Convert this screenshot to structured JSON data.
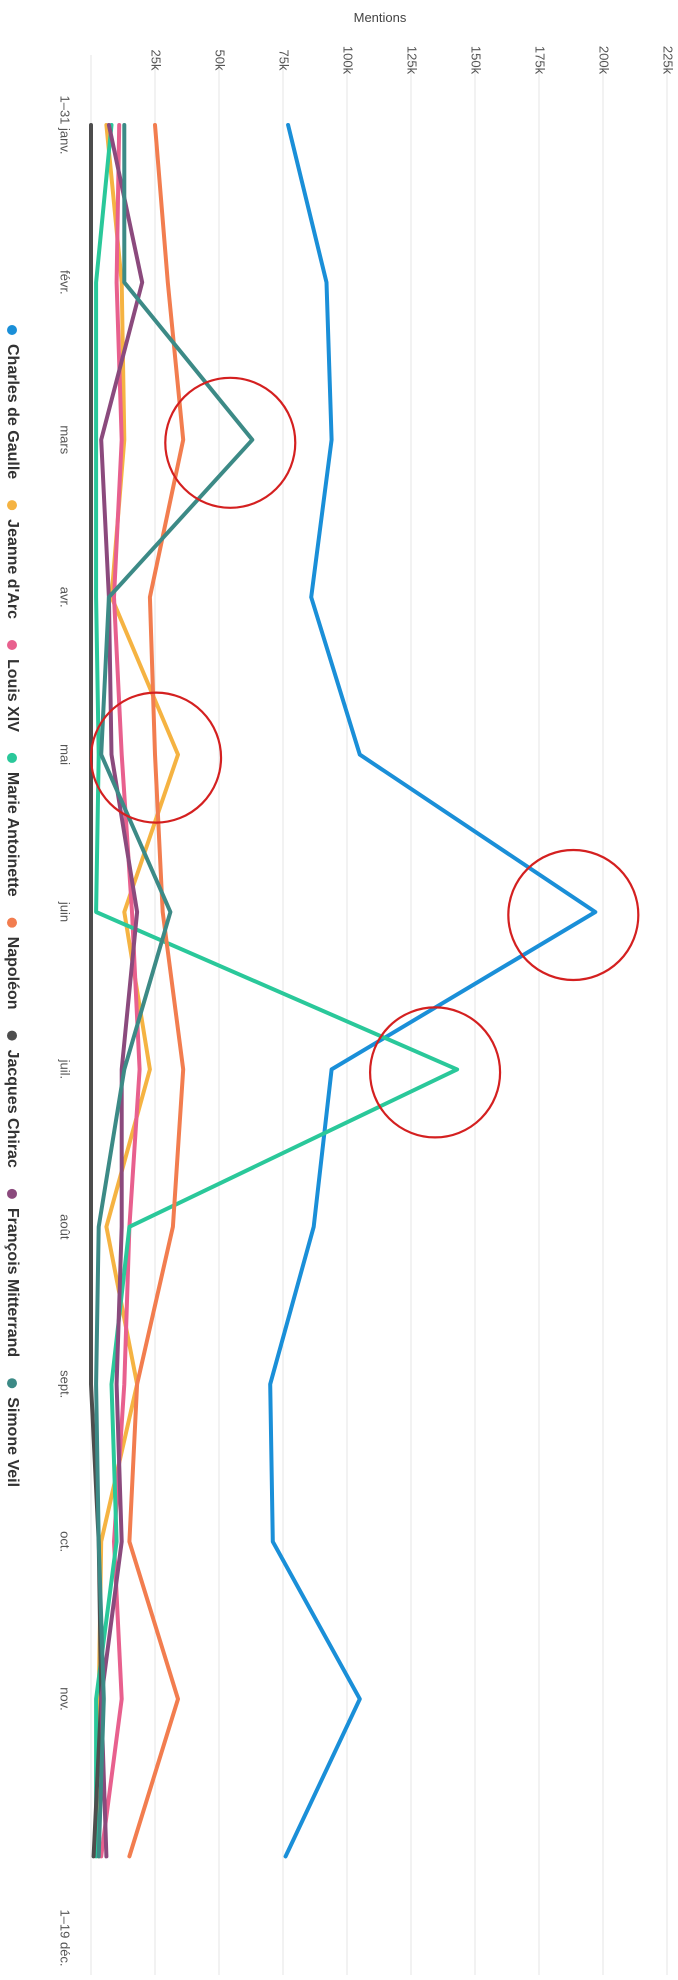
{
  "chart_data": {
    "type": "line",
    "ylabel": "Mentions",
    "xlabel": "",
    "categories": [
      "1–31 janv.",
      "févr.",
      "mars",
      "avr.",
      "mai",
      "juin",
      "juil.",
      "août",
      "sept.",
      "oct.",
      "nov.",
      "1–19 déc."
    ],
    "y_ticks": [
      "25k",
      "50k",
      "75k",
      "100k",
      "125k",
      "150k",
      "175k",
      "200k",
      "225k"
    ],
    "y_tick_values": [
      25000,
      50000,
      75000,
      100000,
      125000,
      150000,
      175000,
      200000,
      225000
    ],
    "ylim": [
      0,
      230000
    ],
    "grid": true,
    "legend_position": "left",
    "orientation": "rotated-90-clockwise",
    "series": [
      {
        "name": "Charles de Gaulle",
        "color": "#1a8fd8",
        "values": [
          77000,
          92000,
          94000,
          86000,
          105000,
          197000,
          94000,
          87000,
          70000,
          71000,
          105000,
          76000
        ]
      },
      {
        "name": "Jeanne d'Arc",
        "color": "#f5b342",
        "values": [
          6000,
          12000,
          13000,
          8000,
          34000,
          13000,
          23000,
          6000,
          18000,
          4000,
          3000,
          3000
        ]
      },
      {
        "name": "Louis XIV",
        "color": "#e8608e",
        "values": [
          11000,
          10000,
          12000,
          9000,
          12000,
          16000,
          19000,
          15000,
          13000,
          9000,
          12000,
          4000
        ]
      },
      {
        "name": "Marie Antoinette",
        "color": "#2ac89a",
        "values": [
          8000,
          2000,
          2000,
          2000,
          3000,
          2000,
          143000,
          15000,
          8000,
          10000,
          2000,
          2000
        ]
      },
      {
        "name": "Napoléon",
        "color": "#f27d4f",
        "values": [
          25000,
          30000,
          36000,
          23000,
          25000,
          28000,
          36000,
          32000,
          18000,
          15000,
          34000,
          15000
        ]
      },
      {
        "name": "Jacques Chirac",
        "color": "#4d4d4d",
        "values": [
          0,
          0,
          0,
          0,
          0,
          0,
          0,
          0,
          0,
          3000,
          4000,
          1000
        ]
      },
      {
        "name": "François Mitterrand",
        "color": "#8b4a7d",
        "values": [
          7000,
          20000,
          4000,
          7000,
          8000,
          18000,
          12000,
          12000,
          10000,
          12000,
          4000,
          6000
        ]
      },
      {
        "name": "Simone Veil",
        "color": "#3c8a86",
        "values": [
          13000,
          13000,
          63000,
          7000,
          4000,
          31000,
          13000,
          3000,
          2000,
          3000,
          5000,
          3000
        ]
      }
    ],
    "annotations": [
      {
        "series": "Simone Veil",
        "category": "mars"
      },
      {
        "series": "Jeanne d'Arc",
        "category": "mai"
      },
      {
        "series": "Charles de Gaulle",
        "category": "juin"
      },
      {
        "series": "Marie Antoinette",
        "category": "juil."
      }
    ]
  }
}
